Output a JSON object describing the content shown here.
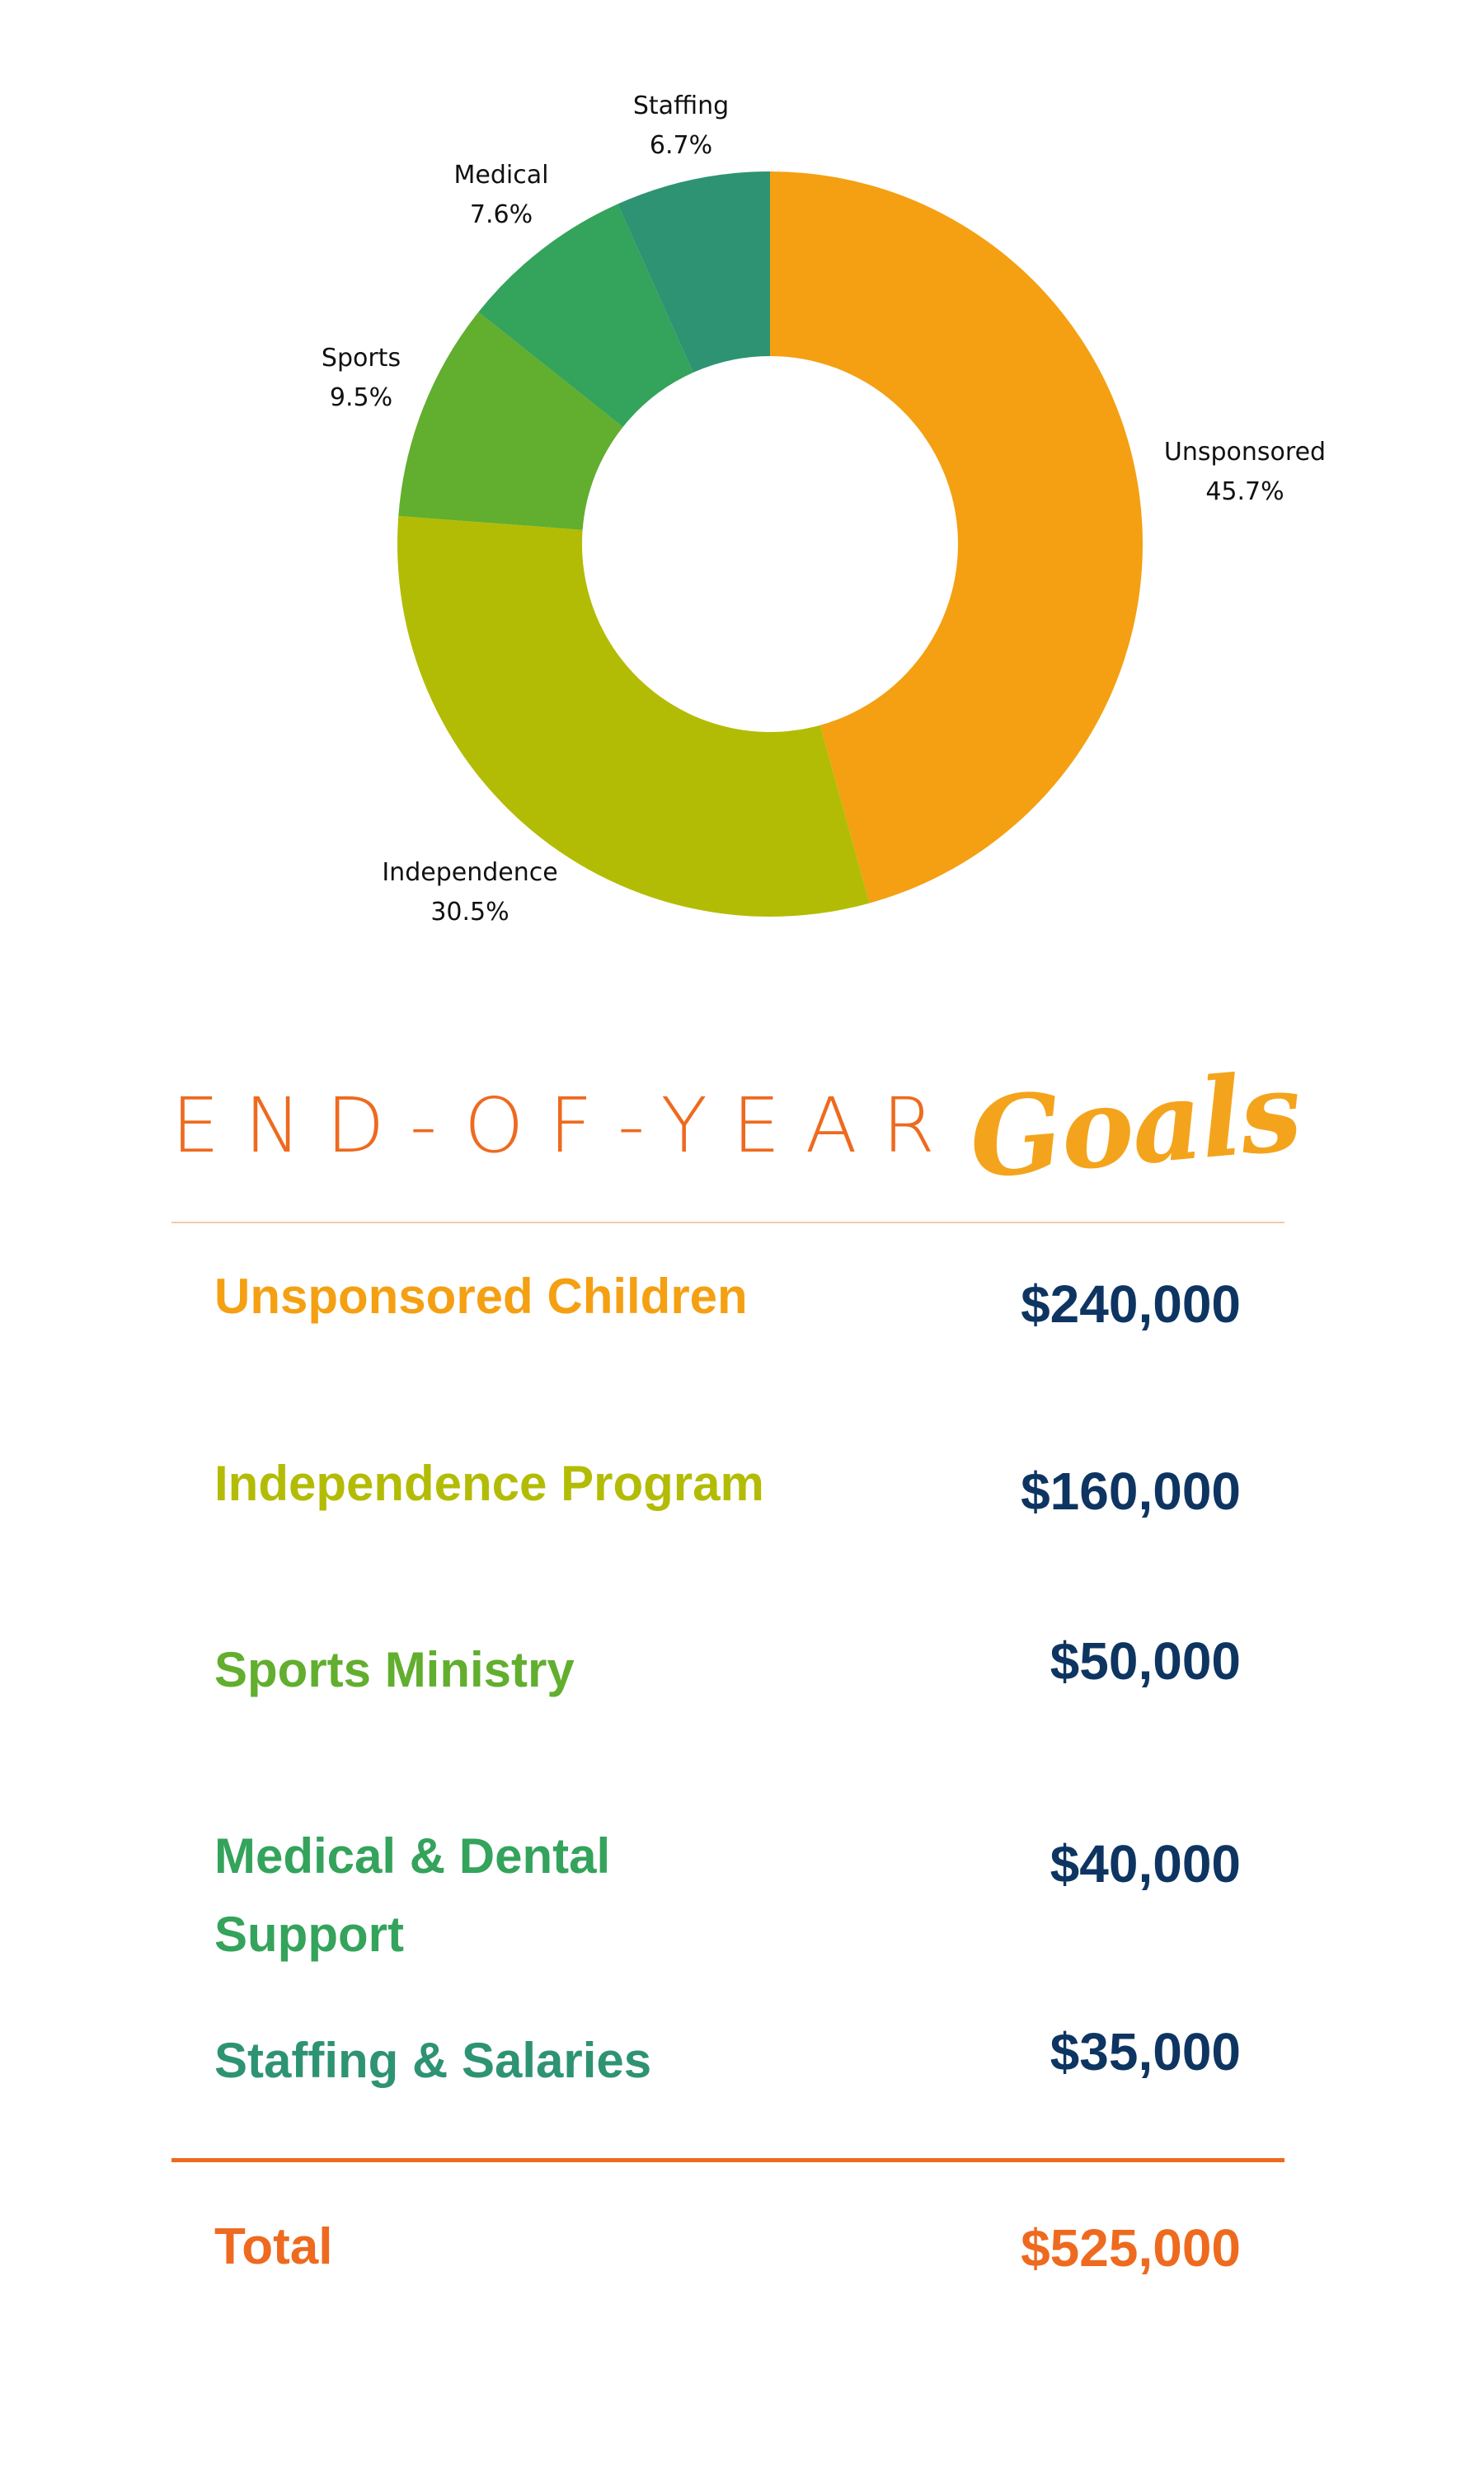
{
  "chart_data": {
    "type": "pie",
    "variant": "donut",
    "slices": [
      {
        "label": "Unsponsored",
        "value": 45.7,
        "value_label": "45.7%",
        "color": "#F4A012"
      },
      {
        "label": "Independence",
        "value": 30.5,
        "value_label": "30.5%",
        "color": "#B3BC04"
      },
      {
        "label": "Sports",
        "value": 9.5,
        "value_label": "9.5%",
        "color": "#62AE2F"
      },
      {
        "label": "Medical",
        "value": 7.6,
        "value_label": "7.6%",
        "color": "#34A35B"
      },
      {
        "label": "Staffing",
        "value": 6.7,
        "value_label": "6.7%",
        "color": "#2E9373"
      }
    ],
    "start_angle": "top",
    "direction": "clockwise"
  },
  "heading": {
    "main": "END-OF-YEAR",
    "script": "Goals"
  },
  "goals": [
    {
      "label": "Unsponsored Children",
      "amount": "$240,000",
      "color": "#F4A012"
    },
    {
      "label": "Independence Program",
      "amount": "$160,000",
      "color": "#B3BC04"
    },
    {
      "label": "Sports Ministry",
      "amount": "$50,000",
      "color": "#62AE2F"
    },
    {
      "label": "Medical & Dental Support",
      "amount": "$40,000",
      "color": "#34A35B"
    },
    {
      "label": "Staffing & Salaries",
      "amount": "$35,000",
      "color": "#2E9373"
    }
  ],
  "total": {
    "label": "Total",
    "amount": "$525,000",
    "color": "#EE6A1F"
  },
  "colors": {
    "accent_orange": "#EE6A1F",
    "amount_navy": "#0E3561"
  }
}
